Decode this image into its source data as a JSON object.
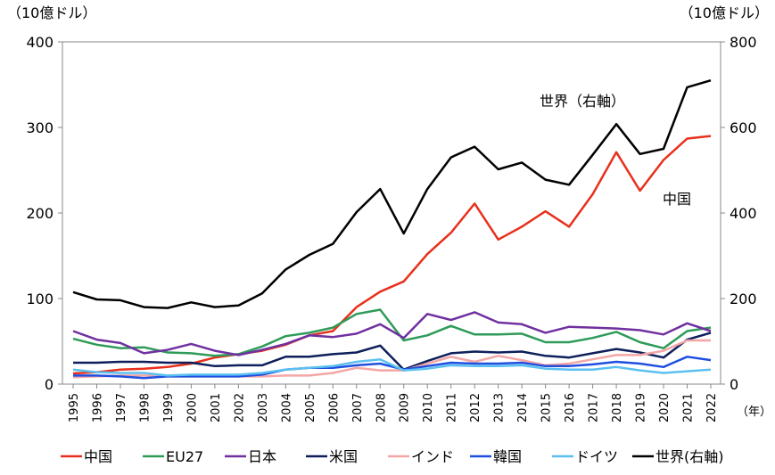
{
  "chart_data": {
    "type": "line",
    "y_label": "（10億ドル）",
    "y2_label": "（10億ドル）",
    "x_unit": "（年）",
    "annotations": [
      {
        "text": "世界（右軸）"
      },
      {
        "text": "中国"
      }
    ],
    "categories": [
      "1995",
      "1996",
      "1997",
      "1998",
      "1999",
      "2000",
      "2001",
      "2002",
      "2003",
      "2004",
      "2005",
      "2006",
      "2007",
      "2008",
      "2009",
      "2010",
      "2011",
      "2012",
      "2013",
      "2014",
      "2015",
      "2016",
      "2017",
      "2018",
      "2019",
      "2020",
      "2021",
      "2022"
    ],
    "ylim": [
      0,
      400
    ],
    "yticks": [
      0,
      100,
      200,
      300,
      400
    ],
    "y2lim": [
      0,
      800
    ],
    "y2ticks": [
      0,
      200,
      400,
      600,
      800
    ],
    "series": [
      {
        "name": "中国",
        "color": "#e8301c",
        "values": [
          12.5,
          14,
          17,
          18,
          20,
          24,
          31,
          35,
          39,
          46,
          57,
          62,
          90,
          108,
          120,
          152,
          177,
          211,
          169,
          184,
          202,
          184,
          222,
          271,
          226,
          262,
          287,
          290
        ]
      },
      {
        "name": "EU27",
        "color": "#2e9b58",
        "values": [
          53,
          46,
          42,
          43,
          37,
          36,
          33,
          35,
          44,
          56,
          60,
          66,
          82,
          87,
          51,
          57,
          68,
          58,
          58,
          59,
          49,
          49,
          54,
          61,
          49,
          42,
          62,
          66
        ]
      },
      {
        "name": "日本",
        "color": "#7030a0",
        "values": [
          62,
          52,
          48,
          36,
          40,
          47,
          39,
          34,
          40,
          47,
          57,
          55,
          59,
          70,
          54,
          82,
          75,
          84,
          72,
          70,
          60,
          67,
          66,
          65,
          63,
          58,
          71,
          62
        ]
      },
      {
        "name": "米国",
        "color": "#0e1f5b",
        "values": [
          25,
          25,
          26,
          26,
          25,
          25,
          21,
          22,
          22,
          32,
          32,
          35,
          37,
          45,
          17,
          27,
          36,
          38,
          37,
          38,
          33,
          31,
          36,
          41,
          37,
          31,
          52,
          60
        ]
      },
      {
        "name": "インド",
        "color": "#f4a6a6",
        "values": [
          8,
          9,
          10,
          10,
          9,
          9,
          9,
          9,
          9,
          10,
          10,
          13,
          19,
          16,
          16,
          24,
          32,
          26,
          33,
          28,
          22,
          24,
          29,
          34,
          34,
          39,
          51,
          51
        ]
      },
      {
        "name": "韓国",
        "color": "#1f4fe0",
        "values": [
          10,
          10,
          9,
          7,
          9,
          9,
          9,
          9,
          11,
          17,
          19,
          19,
          22,
          24,
          17,
          21,
          25,
          24,
          24,
          25,
          21,
          21,
          23,
          26,
          24,
          20,
          32,
          28
        ]
      },
      {
        "name": "ドイツ",
        "color": "#5bc0f0",
        "values": [
          17,
          14,
          13,
          13,
          10,
          11,
          11,
          11,
          13,
          17,
          19,
          21,
          26,
          29,
          16,
          18,
          22,
          21,
          21,
          22,
          18,
          17,
          17,
          20,
          16,
          13,
          15,
          17
        ]
      },
      {
        "name": "世界(右軸)",
        "color": "#000000",
        "axis": "y2",
        "values": [
          215,
          198,
          196,
          180,
          178,
          191,
          180,
          184,
          212,
          268,
          302,
          328,
          402,
          456,
          352,
          456,
          530,
          555,
          502,
          518,
          478,
          466,
          536,
          608,
          538,
          550,
          694,
          710
        ]
      }
    ]
  }
}
